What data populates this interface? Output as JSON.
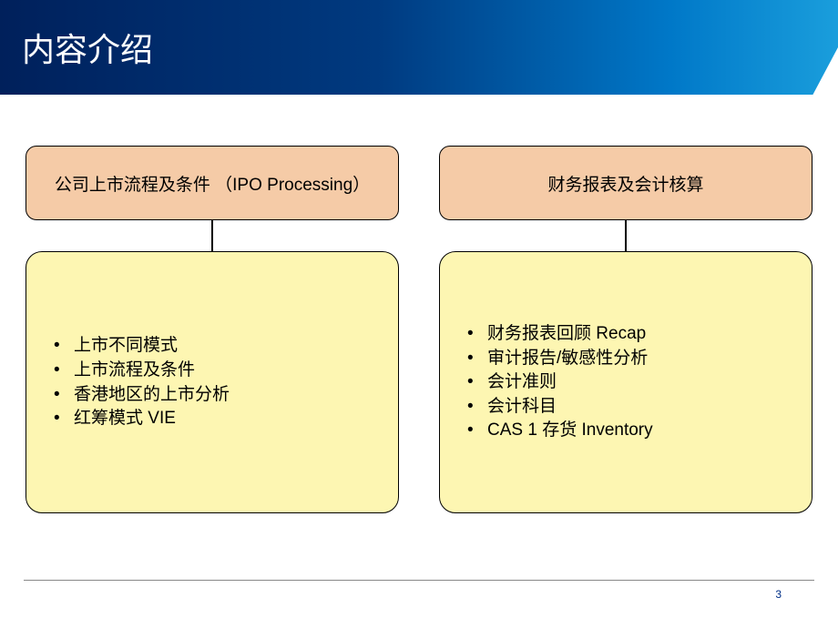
{
  "slide": {
    "title": "内容介绍",
    "page_number": "3",
    "header_gradient_start": "#00205b",
    "header_gradient_end": "#1a9edc",
    "box_top_bg": "#f5cba7",
    "box_bottom_bg": "#fdf6b2",
    "border_color": "#000000",
    "footer_line_color": "#888888",
    "page_num_color": "#002f87"
  },
  "columns": [
    {
      "heading": "公司上市流程及条件 （IPO Processing）",
      "items": [
        "上市不同模式",
        "上市流程及条件",
        "香港地区的上市分析",
        "红筹模式 VIE"
      ]
    },
    {
      "heading": "财务报表及会计核算",
      "items": [
        "财务报表回顾 Recap",
        "审计报告/敏感性分析",
        "会计准则",
        "会计科目",
        "CAS 1 存货 Inventory"
      ]
    }
  ]
}
